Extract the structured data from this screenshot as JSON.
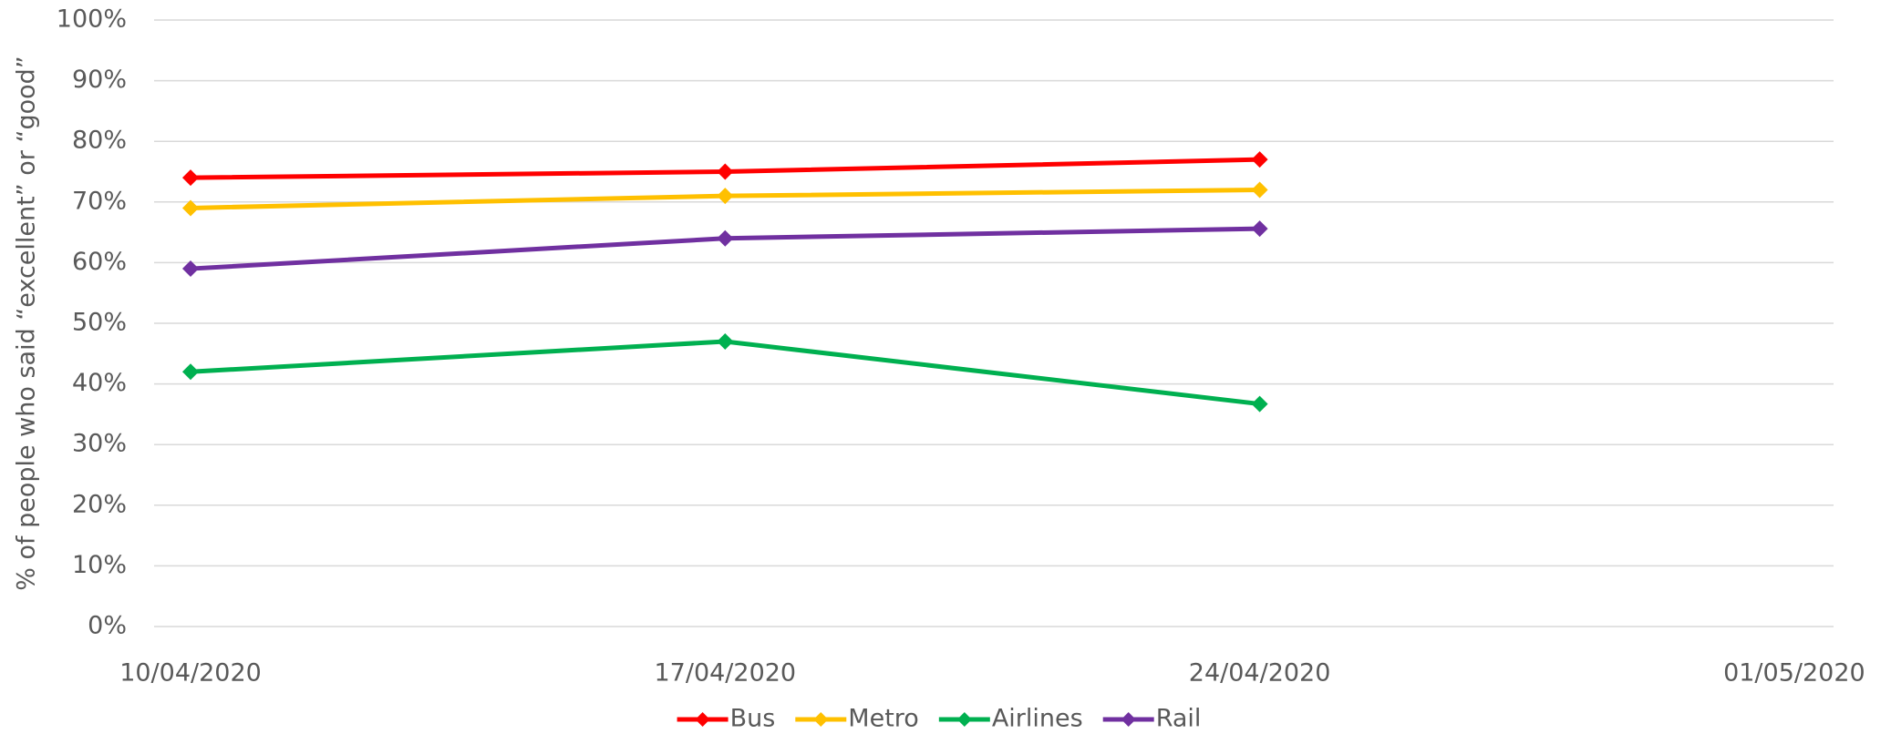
{
  "chart_data": {
    "type": "line",
    "y_label": "% of people who said “excellent” or “good”",
    "categories": [
      "10/04/2020",
      "17/04/2020",
      "24/04/2020",
      "01/05/2020"
    ],
    "series": [
      {
        "name": "Bus",
        "color": "#ff0000",
        "values": [
          74,
          75,
          77,
          null
        ]
      },
      {
        "name": "Metro",
        "color": "#ffc000",
        "values": [
          69,
          71,
          72,
          null
        ]
      },
      {
        "name": "Airlines",
        "color": "#00b050",
        "values": [
          42,
          47,
          36.7,
          null
        ]
      },
      {
        "name": "Rail",
        "color": "#7030a0",
        "values": [
          59,
          64,
          65.6,
          null
        ]
      }
    ],
    "ylim": [
      0,
      100
    ],
    "yticks": [
      {
        "value": 0,
        "label": "0%"
      },
      {
        "value": 10,
        "label": "10%"
      },
      {
        "value": 20,
        "label": "20%"
      },
      {
        "value": 30,
        "label": "30%"
      },
      {
        "value": 40,
        "label": "40%"
      },
      {
        "value": 50,
        "label": "50%"
      },
      {
        "value": 60,
        "label": "60%"
      },
      {
        "value": 70,
        "label": "70%"
      },
      {
        "value": 80,
        "label": "80%"
      },
      {
        "value": 90,
        "label": "90%"
      },
      {
        "value": 100,
        "label": "100%"
      }
    ],
    "grid": true,
    "legend": "bottom"
  }
}
